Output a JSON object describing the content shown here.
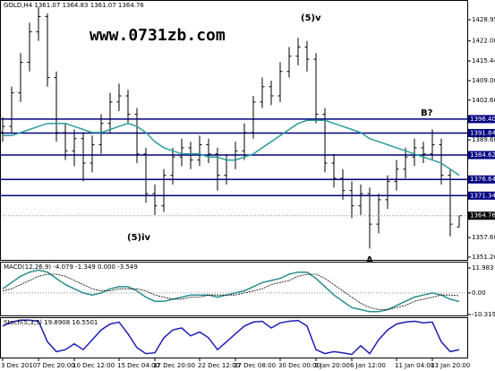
{
  "header": "GOLD,H4 1361.07 1364.83 1361.07 1364.76",
  "watermark": "www.0731zb.com",
  "chart_data": [
    {
      "type": "ohlc",
      "color": "#000000",
      "categories": [
        "3 Dec 2010",
        null,
        null,
        null,
        "7 Dec 20:00",
        null,
        null,
        null,
        "10 Dec 12:00",
        null,
        null,
        null,
        null,
        "15 Dec 04:00",
        null,
        null,
        null,
        "17 Dec 20:00",
        null,
        null,
        null,
        null,
        "22 Dec 12:00",
        null,
        null,
        null,
        "27 Dec 08:00",
        null,
        null,
        null,
        null,
        "30 Dec 00:00",
        null,
        null,
        null,
        "3 Jan 20:00",
        null,
        null,
        null,
        "6 Jan 12:00",
        null,
        null,
        null,
        null,
        "11 Jan 04:00",
        null,
        null,
        null,
        "13 Jan 20:00",
        null,
        null,
        null
      ],
      "open": [
        1392,
        1394,
        1405,
        1415,
        1425,
        1430,
        1410,
        1392,
        1386,
        1390,
        1382,
        1388,
        1395,
        1402,
        1404,
        1398,
        1385,
        1372,
        1368,
        1378,
        1384,
        1387,
        1383,
        1388,
        1385,
        1378,
        1383,
        1386,
        1392,
        1402,
        1407,
        1404,
        1412,
        1417,
        1420,
        1416,
        1398,
        1382,
        1377,
        1373,
        1368,
        1372,
        1362,
        1370,
        1376,
        1380,
        1384,
        1387,
        1385,
        1388,
        1378,
        1361.07
      ],
      "high": [
        1397,
        1407,
        1418,
        1428,
        1433,
        1431,
        1412,
        1395,
        1393,
        1392,
        1391,
        1398,
        1405,
        1408,
        1406,
        1400,
        1387,
        1375,
        1380,
        1387,
        1390,
        1389,
        1391,
        1390,
        1387,
        1385,
        1389,
        1395,
        1404,
        1410,
        1409,
        1415,
        1420,
        1423,
        1422,
        1418,
        1400,
        1385,
        1380,
        1376,
        1375,
        1374,
        1372,
        1378,
        1383,
        1387,
        1390,
        1389,
        1393,
        1390,
        1380,
        1364.83
      ],
      "low": [
        1389,
        1392,
        1402,
        1412,
        1422,
        1407,
        1389,
        1383,
        1381,
        1376,
        1379,
        1385,
        1392,
        1399,
        1395,
        1382,
        1369,
        1365,
        1366,
        1375,
        1381,
        1380,
        1381,
        1382,
        1373,
        1375,
        1380,
        1383,
        1390,
        1400,
        1401,
        1402,
        1410,
        1414,
        1412,
        1395,
        1379,
        1374,
        1370,
        1364,
        1365,
        1354,
        1359,
        1367,
        1373,
        1377,
        1381,
        1382,
        1383,
        1375,
        1358,
        1361.07
      ],
      "close": [
        1394,
        1405,
        1415,
        1425,
        1430,
        1410,
        1392,
        1386,
        1390,
        1382,
        1388,
        1395,
        1402,
        1404,
        1398,
        1385,
        1372,
        1368,
        1378,
        1384,
        1387,
        1383,
        1388,
        1385,
        1378,
        1383,
        1386,
        1392,
        1402,
        1407,
        1404,
        1412,
        1417,
        1420,
        1416,
        1398,
        1382,
        1377,
        1373,
        1368,
        1372,
        1362,
        1370,
        1376,
        1380,
        1384,
        1387,
        1385,
        1388,
        1378,
        1362,
        1364.76
      ],
      "ma": {
        "color": "#2a9d9c",
        "values": [
          1391,
          1391,
          1392,
          1393,
          1394,
          1395,
          1395,
          1395,
          1394,
          1393,
          1392,
          1392,
          1393,
          1394,
          1395,
          1394,
          1392,
          1389,
          1387,
          1386,
          1385,
          1385,
          1385,
          1384,
          1384,
          1383,
          1383,
          1384,
          1385,
          1387,
          1389,
          1391,
          1393,
          1395,
          1396,
          1396,
          1396,
          1395,
          1394,
          1393,
          1392,
          1390,
          1389,
          1388,
          1387,
          1386,
          1385,
          1384,
          1383,
          1382,
          1380,
          1378
        ]
      },
      "ylim": [
        1350.3,
        1435.4
      ],
      "yticks": [
        1428.95,
        {
          "value": 1422,
          "label": "1422.00"
        },
        1415.44,
        {
          "value": 1409,
          "label": "1409.00"
        },
        {
          "value": 1402.6,
          "label": "1402.60"
        },
        {
          "value": 1389.6,
          "label": "1389.60"
        },
        {
          "value": 1357.6,
          "label": "1357.60"
        },
        {
          "value": 1351.2,
          "label": "1351.20"
        }
      ],
      "levels": [
        {
          "value": 1396.4,
          "label": "1396.40"
        },
        {
          "value": 1391.84,
          "label": "1391.84"
        },
        {
          "value": 1384.62,
          "label": "1384.62"
        },
        {
          "value": 1376.64,
          "label": "1376.64"
        },
        {
          "value": 1371.34,
          "label": "1371.34"
        }
      ],
      "level_color": "#000080",
      "last": {
        "value": 1364.76,
        "label": "1364.76"
      },
      "annotations": [
        "(5)v",
        "(5)iv",
        "B?",
        "A"
      ]
    },
    {
      "type": "macd",
      "title": "MACD(12,26,9) -4.079 -1.349 0.000 -3.549",
      "series": [
        {
          "color": "#2a8c8c",
          "values": [
            2,
            5,
            8,
            10,
            11,
            10,
            7,
            4,
            2,
            0,
            -1,
            0,
            2,
            3,
            3,
            1,
            -2,
            -4,
            -4,
            -3,
            -2,
            -1,
            -1,
            -1,
            -2,
            -1,
            0,
            1,
            3,
            5,
            6,
            7,
            9,
            10,
            10,
            7,
            3,
            -1,
            -4,
            -7,
            -8,
            -9,
            -9,
            -8,
            -6,
            -4,
            -2,
            -1,
            0,
            -1,
            -3,
            -4.079
          ]
        },
        {
          "color": "#000000",
          "values": [
            1,
            2,
            4,
            6,
            8,
            9,
            9,
            8,
            6,
            4,
            2,
            1,
            1,
            2,
            2,
            2,
            1,
            -1,
            -2,
            -3,
            -3,
            -2,
            -2,
            -1,
            -1,
            -1,
            -1,
            0,
            1,
            2,
            4,
            5,
            6,
            8,
            9,
            9,
            7,
            4,
            1,
            -2,
            -5,
            -7,
            -8,
            -8,
            -7,
            -6,
            -4,
            -3,
            -2,
            -1,
            -1,
            -1.349
          ]
        }
      ],
      "ylim": [
        -10.8,
        14.6
      ],
      "yticks": [
        {
          "value": 11.983,
          "label": "11.983"
        },
        {
          "value": 0,
          "label": "0.00"
        },
        {
          "value": -10.319,
          "label": "-10.319"
        }
      ]
    },
    {
      "type": "stoch",
      "title": "Stoch(5,3,3) 19.8908 16.5501",
      "series": [
        {
          "color": "#1e1eb4",
          "values": [
            80,
            90,
            95,
            95,
            92,
            40,
            15,
            20,
            35,
            20,
            45,
            70,
            85,
            90,
            60,
            25,
            10,
            12,
            50,
            70,
            75,
            55,
            65,
            50,
            20,
            40,
            60,
            80,
            90,
            92,
            75,
            88,
            92,
            94,
            80,
            20,
            10,
            15,
            12,
            8,
            30,
            10,
            45,
            70,
            85,
            90,
            92,
            88,
            90,
            40,
            15,
            19.8908
          ]
        }
      ],
      "ylim": [
        0,
        100
      ]
    }
  ]
}
